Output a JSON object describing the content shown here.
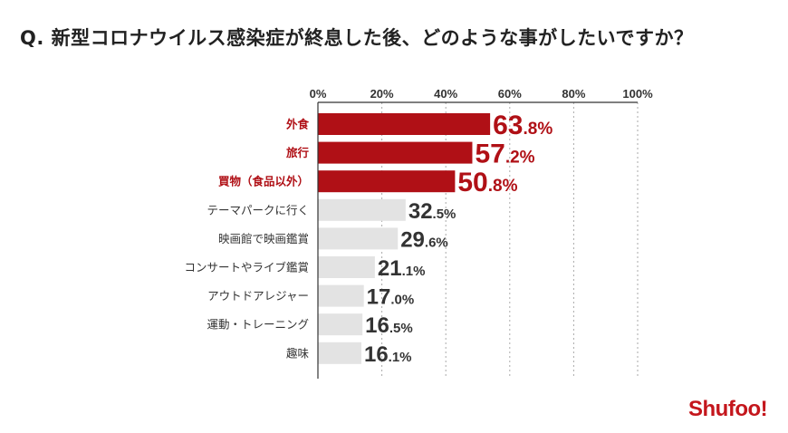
{
  "title": "Q. 新型コロナウイルス感染症が終息した後、どのような事がしたいですか？",
  "logo": "Shufoo!",
  "chart_data": {
    "type": "bar",
    "orientation": "horizontal",
    "categories": [
      "外食",
      "旅行",
      "買物（食品以外）",
      "テーマパークに行く",
      "映画館で映画鑑賞",
      "コンサートやライブ鑑賞",
      "アウトドアレジャー",
      "運動・トレーニング",
      "趣味"
    ],
    "values": [
      63.8,
      57.2,
      50.8,
      32.5,
      29.6,
      21.1,
      17.0,
      16.5,
      16.1
    ],
    "value_labels": [
      "63.8%",
      "57.2%",
      "50.8%",
      "32.5%",
      "29.6%",
      "21.1%",
      "17.0%",
      "16.5%",
      "16.1%"
    ],
    "highlighted": [
      true,
      true,
      true,
      false,
      false,
      false,
      false,
      false,
      false
    ],
    "xlim": [
      0,
      100
    ],
    "xticks": [
      "0%",
      "20%",
      "40%",
      "60%",
      "80%",
      "100%"
    ],
    "grid": "vertical dotted",
    "colors": {
      "highlight": "#b01016",
      "normal": "#e3e3e3"
    }
  }
}
